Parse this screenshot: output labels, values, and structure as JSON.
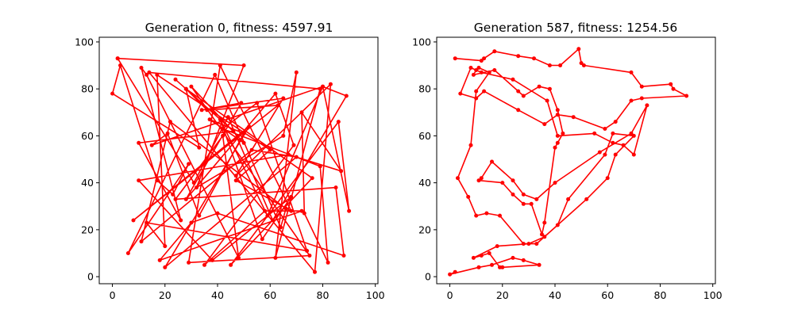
{
  "colors": {
    "route": "#ff0000",
    "axes": "#000000",
    "background": "#ffffff"
  },
  "chart_data": [
    {
      "type": "line",
      "title": "Generation 0, fitness: 4597.91",
      "xlabel": "",
      "ylabel": "",
      "xlim": [
        -5,
        101
      ],
      "ylim": [
        -3,
        102
      ],
      "xticks": [
        0,
        20,
        40,
        60,
        80,
        100
      ],
      "yticks": [
        0,
        20,
        40,
        60,
        80,
        100
      ],
      "grid": false,
      "markers": true,
      "series": [
        {
          "x": [
            2,
            50,
            32,
            65,
            70,
            62,
            79,
            14,
            77,
            83,
            47,
            65,
            34,
            49,
            28,
            62,
            69,
            35,
            58,
            72,
            18,
            30,
            40,
            88,
            85,
            24,
            42,
            48,
            13,
            11,
            26,
            10,
            46,
            24,
            28,
            36,
            63,
            8,
            52,
            20,
            70,
            53,
            11,
            22,
            66,
            64,
            39,
            6,
            29,
            23,
            17,
            3,
            0,
            33,
            28,
            76,
            45,
            86,
            90,
            80,
            15,
            21,
            33,
            50,
            37,
            50,
            30,
            75,
            29,
            41,
            68,
            47,
            60,
            17,
            20,
            13,
            74,
            55,
            42,
            79,
            82,
            73,
            72,
            87,
            67,
            10,
            38,
            68,
            57,
            41,
            59,
            80,
            89,
            61,
            44,
            31,
            2
          ],
          "y": [
            93,
            90,
            38,
            60,
            87,
            8,
            80,
            87,
            2,
            82,
            43,
            76,
            71,
            74,
            33,
            78,
            56,
            5,
            28,
            28,
            7,
            23,
            27,
            9,
            38,
            33,
            60,
            8,
            86,
            89,
            24,
            57,
            62,
            84,
            80,
            71,
            73,
            24,
            64,
            4,
            51,
            54,
            15,
            66,
            29,
            21,
            86,
            10,
            48,
            35,
            41,
            90,
            78,
            55,
            80,
            42,
            5,
            66,
            28,
            81,
            56,
            61,
            26,
            61,
            67,
            57,
            81,
            9,
            6,
            90,
            28,
            41,
            54,
            86,
            13,
            23,
            11,
            74,
            63,
            47,
            6,
            27,
            70,
            45,
            52,
            41,
            7,
            34,
            16,
            67,
            26,
            81,
            77,
            24,
            68,
            40,
            93
          ]
        }
      ]
    },
    {
      "type": "line",
      "title": "Generation 587, fitness: 1254.56",
      "xlabel": "",
      "ylabel": "",
      "xlim": [
        -5,
        101
      ],
      "ylim": [
        -3,
        102
      ],
      "xticks": [
        0,
        20,
        40,
        60,
        80,
        100
      ],
      "yticks": [
        0,
        20,
        40,
        60,
        80,
        100
      ],
      "grid": false,
      "markers": true,
      "series": [
        {
          "x": [
            2,
            12,
            13,
            17,
            26,
            32,
            38,
            42,
            49,
            50,
            51,
            69,
            73,
            84,
            85,
            90,
            73,
            69,
            63,
            59,
            47,
            41,
            36,
            26,
            13,
            10,
            4,
            8,
            12,
            24,
            37,
            41,
            55,
            62,
            66,
            70,
            75,
            69,
            57,
            40,
            33,
            28,
            24,
            16,
            12,
            11,
            20,
            24,
            28,
            31,
            35,
            36,
            40,
            41,
            43,
            41,
            38,
            34,
            28,
            26,
            17,
            9,
            10,
            11,
            15,
            10,
            8,
            3,
            7,
            10,
            14,
            19,
            28,
            33,
            52,
            60,
            63,
            70,
            62,
            59,
            45,
            41,
            36,
            30,
            18,
            9,
            12,
            15,
            19,
            20,
            34,
            28,
            24,
            16,
            11,
            0,
            2
          ],
          "y": [
            93,
            92,
            93,
            96,
            94,
            93,
            90,
            90,
            97,
            91,
            90,
            87,
            81,
            82,
            80,
            77,
            76,
            75,
            66,
            63,
            68,
            69,
            65,
            71,
            79,
            76,
            78,
            89,
            87,
            84,
            75,
            60,
            61,
            57,
            56,
            52,
            73,
            61,
            53,
            40,
            33,
            35,
            41,
            49,
            42,
            41,
            40,
            35,
            31,
            31,
            18,
            23,
            55,
            57,
            61,
            71,
            80,
            81,
            77,
            79,
            88,
            86,
            88,
            89,
            87,
            79,
            56,
            42,
            34,
            26,
            27,
            26,
            14,
            14,
            33,
            42,
            52,
            60,
            61,
            52,
            33,
            22,
            17,
            14,
            13,
            8,
            9,
            10,
            4,
            4,
            5,
            7,
            8,
            5,
            4,
            1,
            2
          ]
        }
      ]
    }
  ]
}
